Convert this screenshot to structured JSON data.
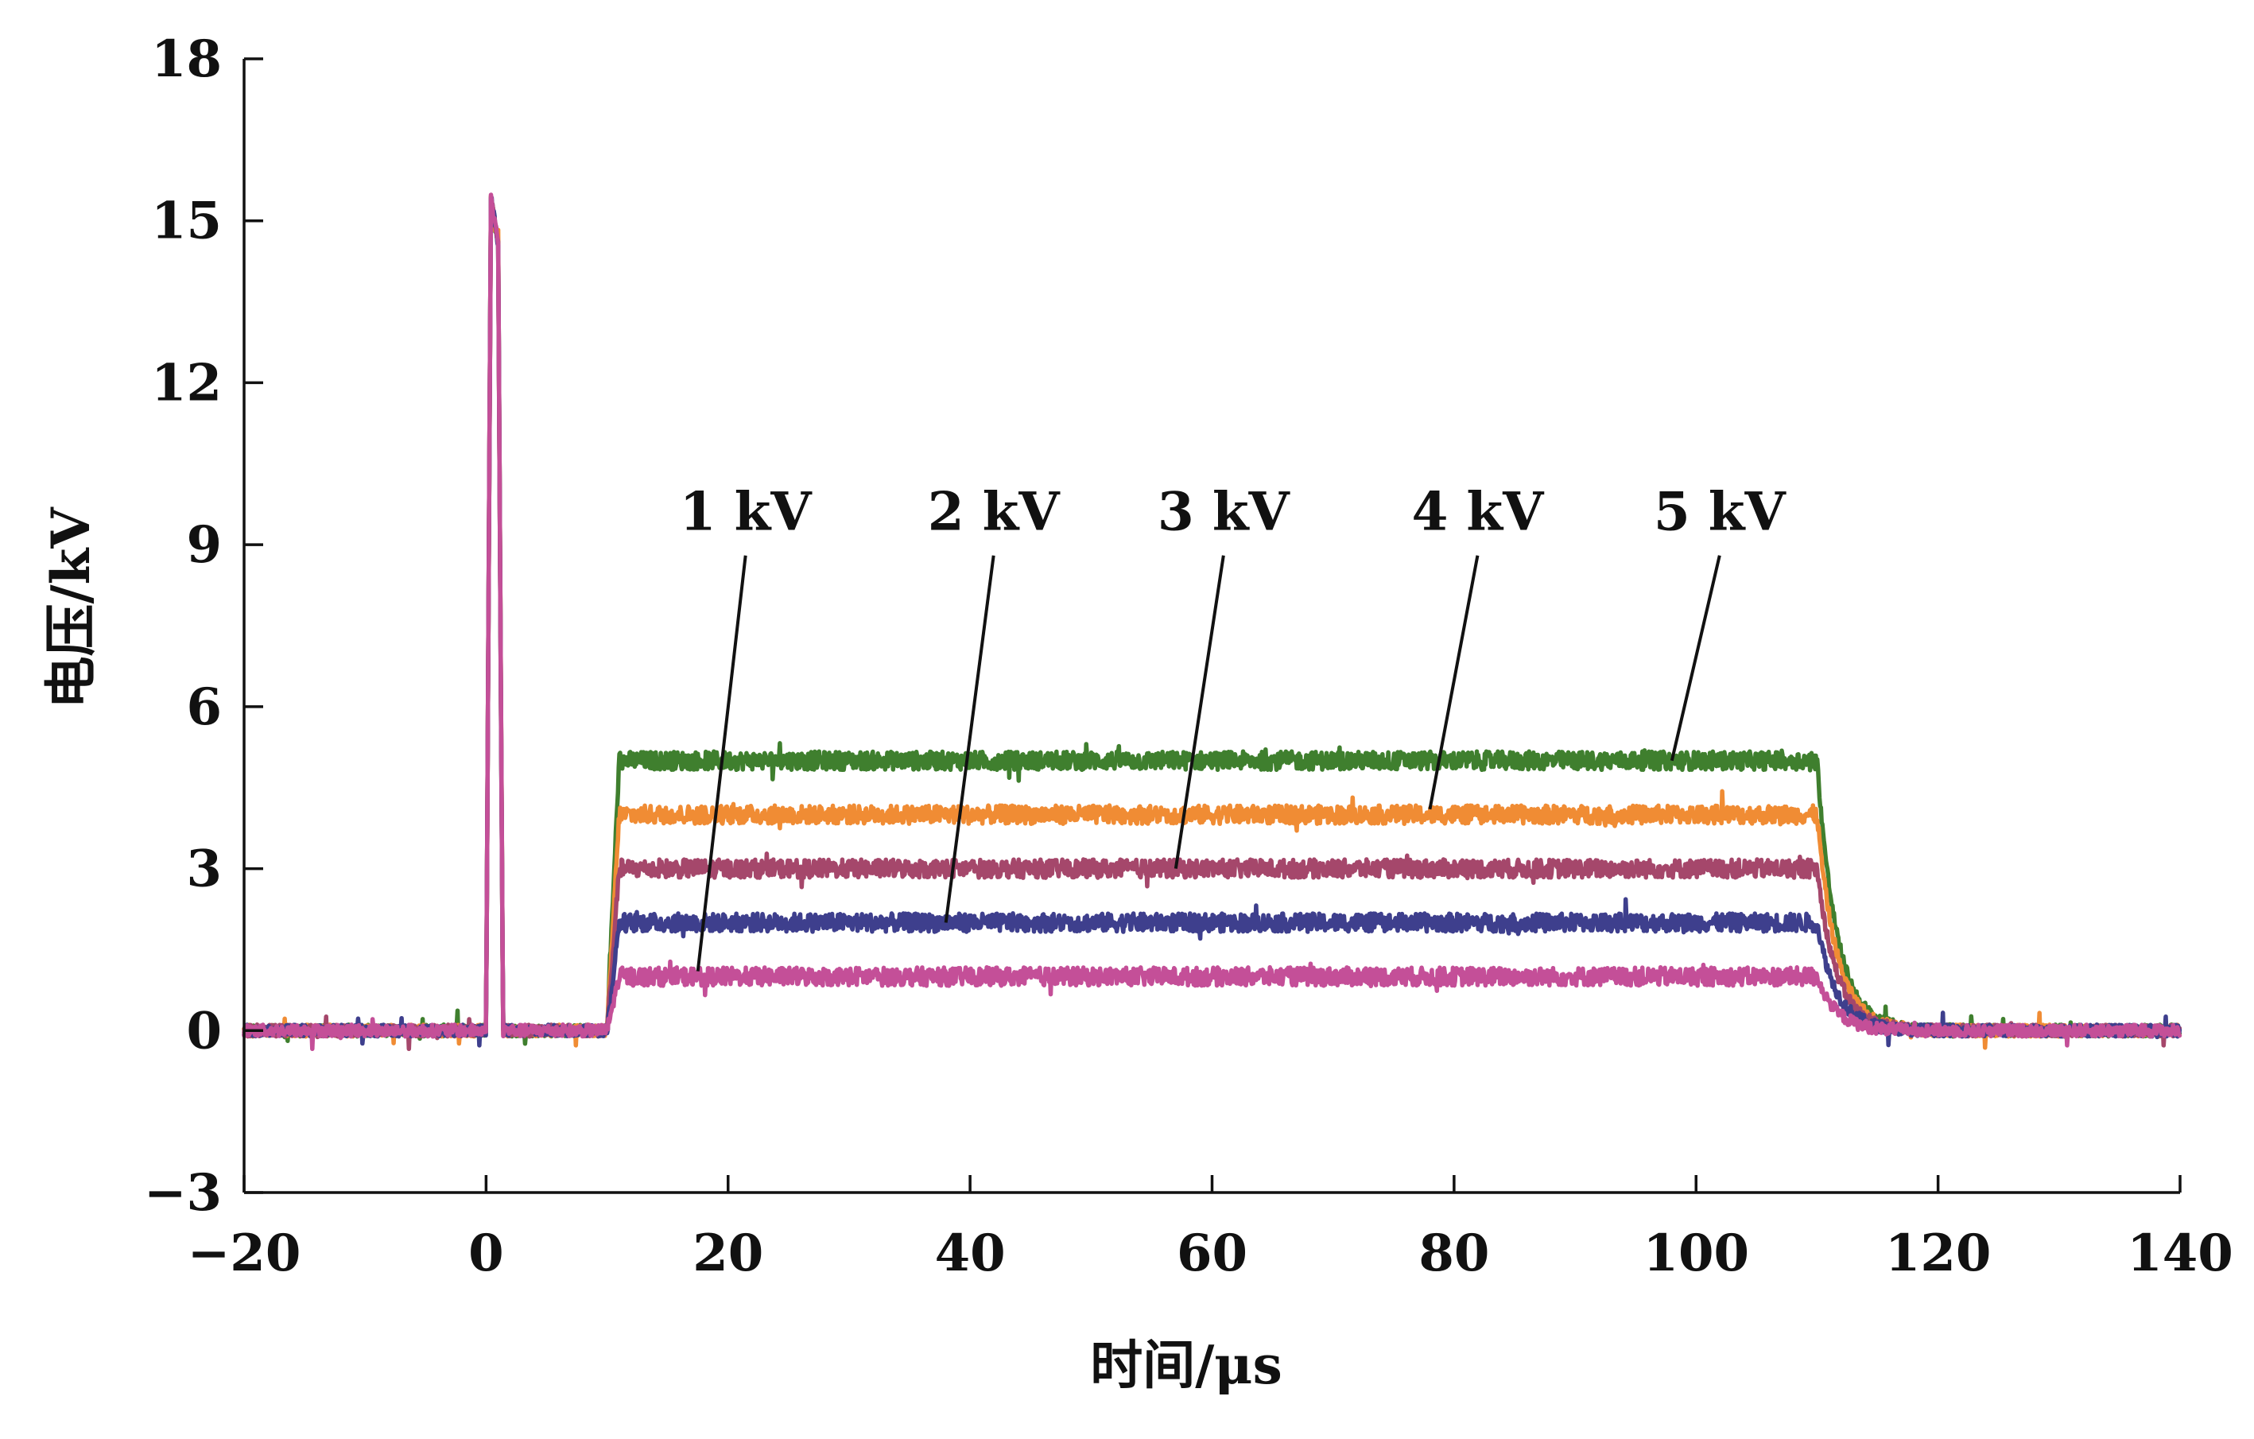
{
  "chart_data": {
    "type": "line",
    "xlabel": "时间/μs",
    "ylabel": "电压/kV",
    "xlim": [
      -20,
      140
    ],
    "ylim": [
      -3,
      18
    ],
    "xticks": [
      "−20",
      "0",
      "20",
      "40",
      "60",
      "80",
      "100",
      "120",
      "140"
    ],
    "yticks": [
      "−3",
      "0",
      "3",
      "6",
      "9",
      "12",
      "15",
      "18"
    ],
    "grid": false,
    "spike": {
      "t": [
        0,
        0.4,
        1.0,
        1.4
      ],
      "v": [
        0,
        15.4,
        14.6,
        0
      ]
    },
    "pulse": {
      "rise_start": 10,
      "rise_end": 11,
      "fall_start": 110,
      "end": 118
    },
    "series": [
      {
        "level": 5,
        "color": "#3f7f2e"
      },
      {
        "level": 4,
        "color": "#f08c34"
      },
      {
        "level": 3,
        "color": "#a5476b"
      },
      {
        "level": 2,
        "color": "#3e3f8d"
      },
      {
        "level": 1,
        "color": "#c44f98"
      }
    ],
    "annotations": [
      {
        "text": "1 kV",
        "point": [
          17.5,
          1.1
        ]
      },
      {
        "text": "2 kV",
        "point": [
          38,
          2.0
        ]
      },
      {
        "text": "3 kV",
        "point": [
          57,
          3.0
        ]
      },
      {
        "text": "4 kV",
        "point": [
          78,
          4.1
        ]
      },
      {
        "text": "5 kV",
        "point": [
          98,
          5.0
        ]
      }
    ]
  }
}
